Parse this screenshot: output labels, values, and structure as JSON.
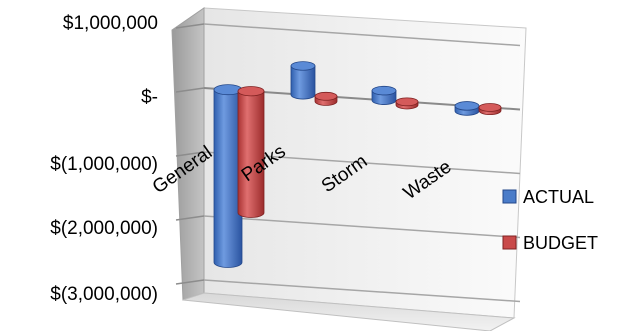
{
  "chart_data": {
    "type": "bar",
    "style": "3d-cylinder",
    "categories": [
      "General",
      "Parks",
      "Storm",
      "Waste"
    ],
    "series": [
      {
        "name": "ACTUAL",
        "color": "#4a7cc9",
        "values": [
          -2700000,
          450000,
          150000,
          -80000
        ]
      },
      {
        "name": "BUDGET",
        "color": "#c94a4a",
        "values": [
          -1900000,
          -80000,
          -50000,
          -50000
        ]
      }
    ],
    "y_ticks": [
      {
        "value": 1000000,
        "label": "$1,000,000"
      },
      {
        "value": 0,
        "label": "$-"
      },
      {
        "value": -1000000,
        "label": "$(1,000,000)"
      },
      {
        "value": -2000000,
        "label": "$(2,000,000)"
      },
      {
        "value": -3000000,
        "label": "$(3,000,000)"
      }
    ],
    "ylim": [
      -3000000,
      1000000
    ],
    "grid": true,
    "legend_position": "right"
  }
}
